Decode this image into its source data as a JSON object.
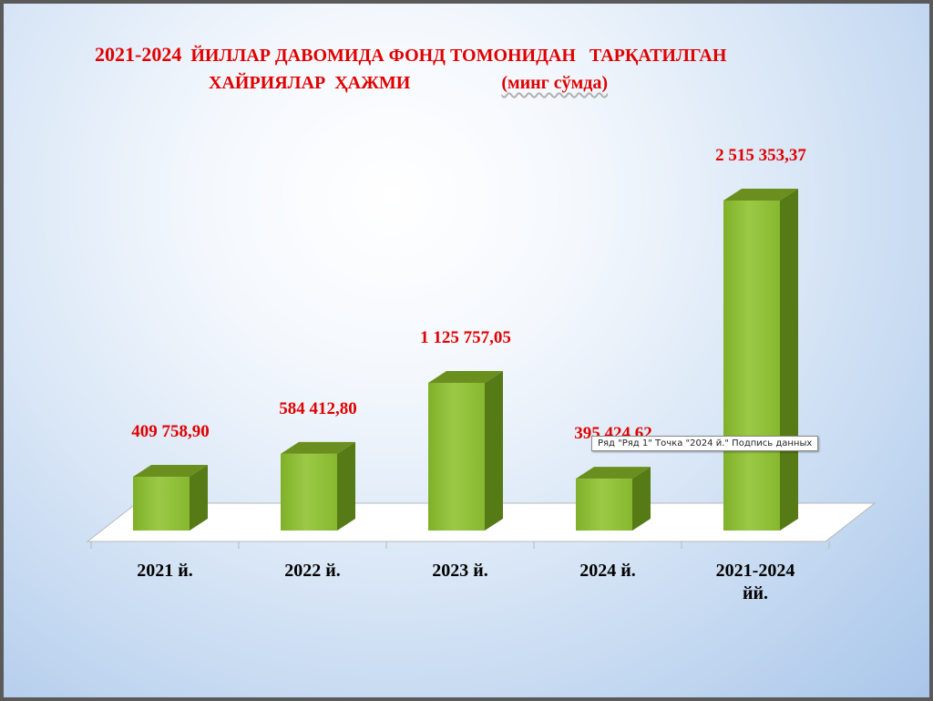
{
  "title": {
    "line1_prefix": "2021-2024",
    "line1_rest": "  ЙИЛЛАР ДАВОМИДА ФОНД ТОМОНИДАН   ТАРҚАТИЛГАН",
    "line2_main": "ХАЙРИЯЛАР  ҲАЖМИ                    ",
    "line2_unit": "(минг сўмда)"
  },
  "tooltip": "Ряд \"Ряд 1\" Точка \"2024 й.\" Подпись данных",
  "colors": {
    "title": "#e00000",
    "data_labels": "#e00000",
    "bar_front": "#8cbd33",
    "bar_top": "#6b8f1e",
    "bar_side": "#567a15",
    "category_labels": "#000000"
  },
  "chart_data": {
    "type": "bar",
    "style": "3d-column",
    "categories": [
      "2021 й.",
      "2022 й.",
      "2023 й.",
      "2024 й.",
      "2021-2024 йй."
    ],
    "values": [
      409758.9,
      584412.8,
      1125757.05,
      395424.62,
      2515353.37
    ],
    "data_labels": [
      "409 758,90",
      "584 412,80",
      "1 125 757,05",
      "395 424,62",
      "2 515 353,37"
    ],
    "ylim": [
      0,
      2515353.37
    ],
    "grid": false,
    "legend": "none"
  }
}
